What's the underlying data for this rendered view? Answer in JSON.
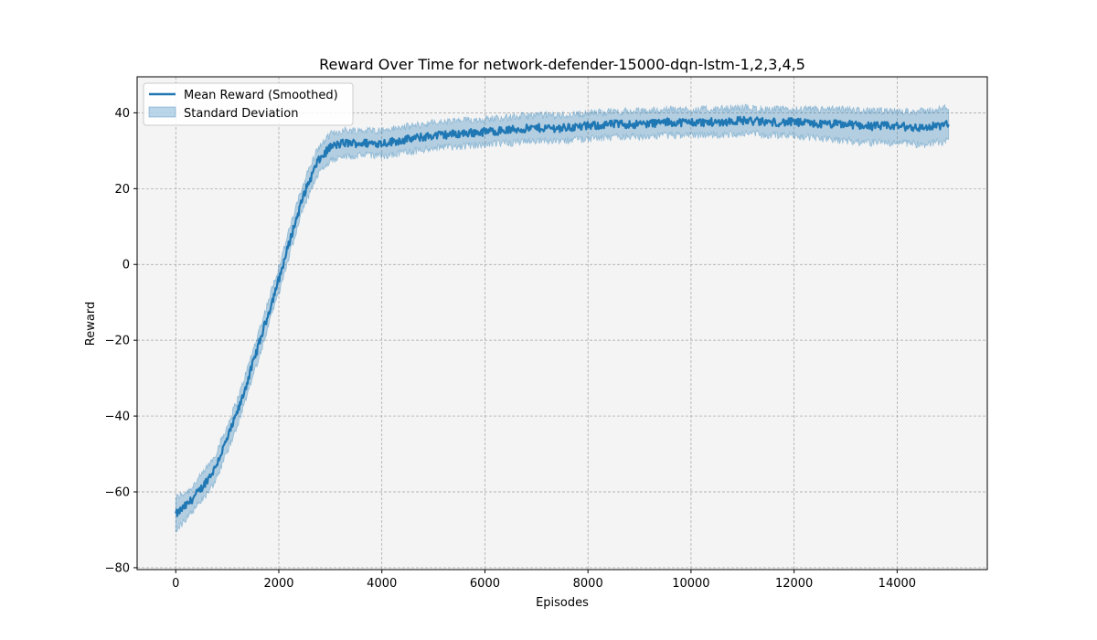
{
  "chart_data": {
    "type": "line",
    "title": "Reward Over Time for network-defender-15000-dqn-lstm-1,2,3,4,5",
    "xlabel": "Episodes",
    "ylabel": "Reward",
    "xlim": [
      -750,
      15750
    ],
    "ylim": [
      -80.5,
      49.5
    ],
    "xticks": [
      0,
      2000,
      4000,
      6000,
      8000,
      10000,
      12000,
      14000
    ],
    "yticks": [
      -80,
      -60,
      -40,
      -20,
      0,
      20,
      40
    ],
    "xtick_labels": [
      "0",
      "2000",
      "4000",
      "6000",
      "8000",
      "10000",
      "12000",
      "14000"
    ],
    "ytick_labels": [
      "−80",
      "−60",
      "−40",
      "−20",
      "0",
      "20",
      "40"
    ],
    "grid": true,
    "legend_position": "upper-left",
    "colors": {
      "mean": "#1f77b4",
      "band": "#1f77b4",
      "axes_bg": "#f4f4f4",
      "grid": "#a0a0a0"
    },
    "series": [
      {
        "name": "Mean Reward (Smoothed)",
        "kind": "line",
        "x": [
          0,
          250,
          500,
          750,
          1000,
          1250,
          1500,
          1750,
          2000,
          2250,
          2500,
          2750,
          3000,
          3250,
          3500,
          3750,
          4000,
          4500,
          5000,
          5500,
          6000,
          6500,
          7000,
          7500,
          8000,
          8500,
          9000,
          9500,
          10000,
          10500,
          11000,
          11500,
          12000,
          12500,
          13000,
          13500,
          14000,
          14500,
          15000
        ],
        "y": [
          -66,
          -63,
          -59,
          -54,
          -46,
          -37,
          -26,
          -15,
          -4,
          8,
          19,
          27,
          31,
          32,
          32,
          32,
          32,
          33,
          34,
          34.5,
          35,
          35.5,
          36,
          36,
          36.5,
          37,
          37,
          37.5,
          37.5,
          37.5,
          38,
          37.5,
          37.5,
          37,
          37,
          36.5,
          36.5,
          36,
          37
        ]
      },
      {
        "name": "Standard Deviation",
        "kind": "band",
        "x": [
          0,
          250,
          500,
          750,
          1000,
          1250,
          1500,
          1750,
          2000,
          2250,
          2500,
          2750,
          3000,
          3250,
          3500,
          3750,
          4000,
          4500,
          5000,
          5500,
          6000,
          6500,
          7000,
          7500,
          8000,
          8500,
          9000,
          9500,
          10000,
          10500,
          11000,
          11500,
          12000,
          12500,
          13000,
          13500,
          14000,
          14500,
          15000
        ],
        "lower": [
          -70,
          -66,
          -62,
          -57,
          -49,
          -40,
          -29,
          -18,
          -7,
          5,
          16,
          24,
          28,
          29,
          29,
          29,
          29,
          30,
          31,
          31.5,
          32,
          32.5,
          33,
          33,
          33.5,
          34,
          34,
          34.5,
          34.5,
          34.5,
          35,
          34.5,
          34.5,
          33.5,
          33,
          32.5,
          32.5,
          32,
          33
        ],
        "upper": [
          -62,
          -60,
          -56,
          -51,
          -43,
          -34,
          -23,
          -12,
          -1,
          11,
          22,
          30,
          34,
          35,
          35,
          35,
          35,
          36,
          37,
          37.5,
          38,
          38.5,
          39,
          39,
          39.5,
          40,
          40,
          40.5,
          40.5,
          40.5,
          41,
          40.5,
          40.5,
          40.5,
          40.5,
          40,
          40,
          40,
          41
        ]
      }
    ]
  }
}
